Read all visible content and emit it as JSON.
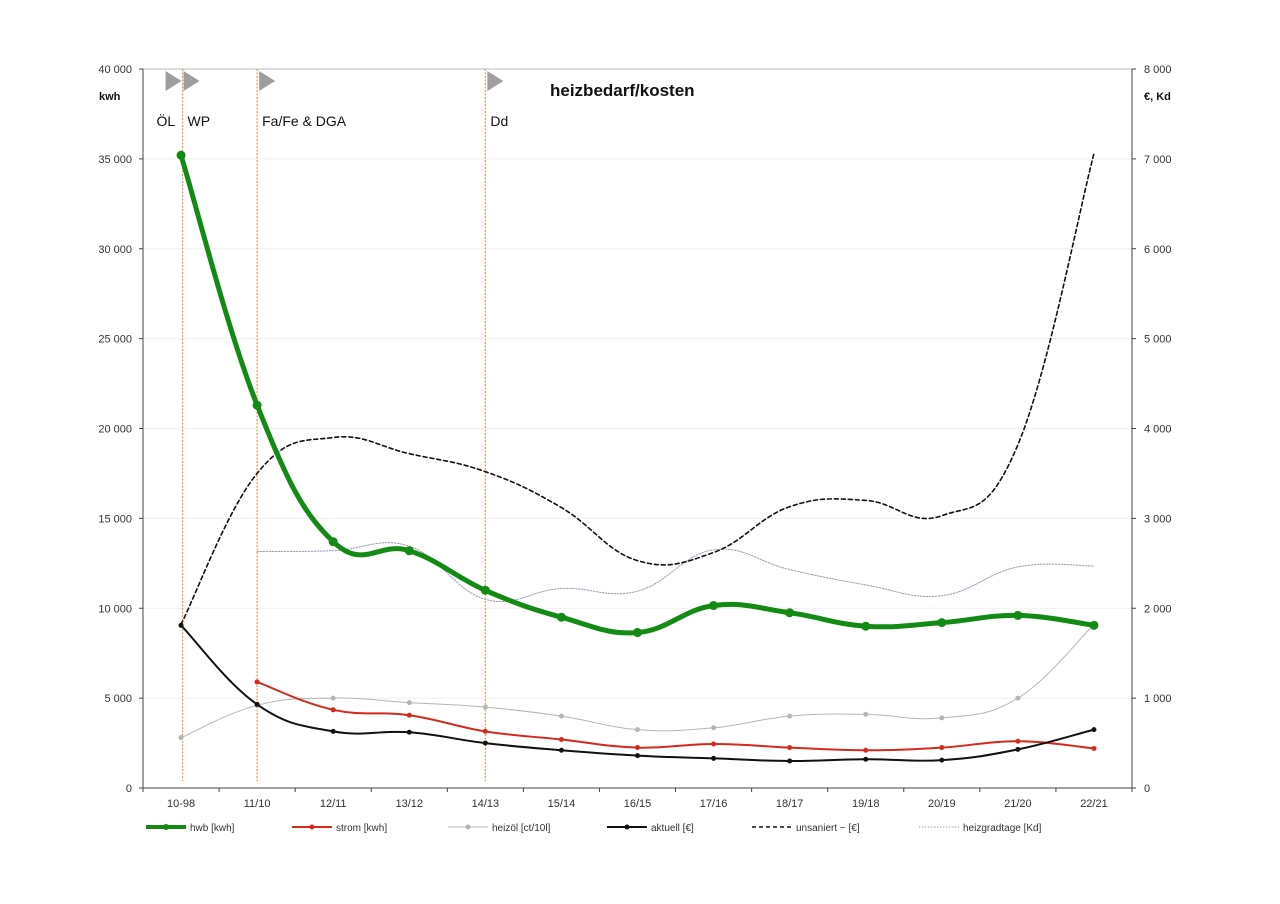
{
  "chart_data": {
    "type": "line",
    "title": "heizbedarf/kosten",
    "categories": [
      "10-98",
      "11/10",
      "12/11",
      "13/12",
      "14/13",
      "15/14",
      "16/15",
      "17/16",
      "18/17",
      "19/18",
      "20/19",
      "21/20",
      "22/21"
    ],
    "y_left": {
      "unit": "kwh",
      "ylim": [
        0,
        40000
      ],
      "ticks": [
        0,
        5000,
        10000,
        15000,
        20000,
        25000,
        30000,
        35000,
        40000
      ],
      "tick_labels": [
        "0",
        "5 000",
        "10 000",
        "15 000",
        "20 000",
        "25 000",
        "30 000",
        "35 000",
        "40 000"
      ]
    },
    "y_right": {
      "unit": "€, Kd",
      "ylim": [
        0,
        8000
      ],
      "ticks": [
        0,
        1000,
        2000,
        3000,
        4000,
        5000,
        6000,
        7000,
        8000
      ],
      "tick_labels": [
        "0",
        "1 000",
        "2 000",
        "3 000",
        "4 000",
        "5 000",
        "6 000",
        "7 000",
        "8 000"
      ]
    },
    "grid": true,
    "legend_position": "bottom",
    "events": [
      {
        "label": "ÖL",
        "x": 0.52
      },
      {
        "label": "WP",
        "x": 0.52
      },
      {
        "label": "Fa/Fe & DGA",
        "x": 1.5
      },
      {
        "label": "Dd",
        "x": 4.5
      }
    ],
    "series": [
      {
        "name": "hwb [kwh]",
        "axis": "left",
        "color": "#138a13",
        "style": "thick",
        "markers": true,
        "values": [
          35200,
          21300,
          13700,
          13200,
          11000,
          9500,
          8650,
          10150,
          9750,
          9000,
          9200,
          9600,
          9050
        ]
      },
      {
        "name": "strom [kwh]",
        "axis": "left",
        "color": "#d42a1e",
        "style": "solid",
        "markers": true,
        "values": [
          null,
          5900,
          4350,
          4050,
          3150,
          2700,
          2250,
          2450,
          2250,
          2100,
          2250,
          2600,
          2200
        ]
      },
      {
        "name": "heizöl [ct/10l]",
        "axis": "right",
        "color": "#b5b5b5",
        "style": "thin",
        "markers": true,
        "values": [
          560,
          920,
          1000,
          950,
          900,
          800,
          650,
          670,
          800,
          820,
          780,
          1000,
          1820
        ]
      },
      {
        "name": "aktuell [€]",
        "axis": "right",
        "color": "#111111",
        "style": "solid",
        "markers": true,
        "values": [
          1810,
          930,
          630,
          620,
          500,
          420,
          360,
          330,
          300,
          320,
          310,
          430,
          650
        ]
      },
      {
        "name": "unsaniert ~ [€]",
        "axis": "right",
        "color": "#111111",
        "style": "dashed",
        "markers": false,
        "values": [
          1820,
          3500,
          3900,
          3720,
          3520,
          3120,
          2530,
          2620,
          3130,
          3200,
          3030,
          3820,
          7060
        ]
      },
      {
        "name": "heizgradtage [Kd]",
        "axis": "right",
        "color": "#9a9ab8",
        "style": "dotted",
        "markers": false,
        "values": [
          null,
          2630,
          2640,
          2690,
          2100,
          2220,
          2190,
          2650,
          2430,
          2260,
          2140,
          2460,
          2470
        ]
      }
    ]
  }
}
